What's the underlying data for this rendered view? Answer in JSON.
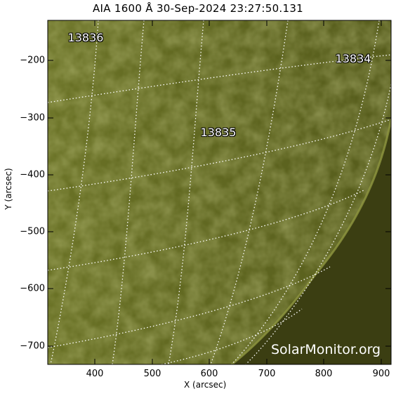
{
  "title": "AIA 1600 Å 30-Sep-2024 23:27:50.131",
  "xaxis": {
    "label": "X (arcsec)",
    "ticks": [
      "400",
      "500",
      "600",
      "700",
      "800",
      "900"
    ]
  },
  "yaxis": {
    "label": "Y (arcsec)",
    "ticks": [
      "−200",
      "−300",
      "−400",
      "−500",
      "−600",
      "−700"
    ]
  },
  "regions": [
    {
      "id": "13836"
    },
    {
      "id": "13834"
    },
    {
      "id": "13835"
    }
  ],
  "watermark": "SolarMonitor.org",
  "colors": {
    "disk": "#727b2a",
    "limb": "#3a3d10",
    "grid": "#ffffff"
  }
}
